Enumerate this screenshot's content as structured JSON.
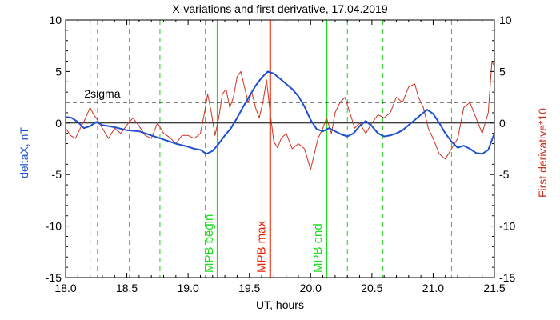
{
  "chart_data": {
    "type": "line",
    "title": "X-variations and first derivative, 17.04.2019",
    "xlabel": "UT, hours",
    "ylabel_left": "deltaX, nT",
    "ylabel_right": "First derivative*10",
    "xlim": [
      18.0,
      21.5
    ],
    "ylim": [
      -15,
      10
    ],
    "x_ticks": [
      {
        "value": 18.0,
        "label": "18.0"
      },
      {
        "value": 18.5,
        "label": "18.5"
      },
      {
        "value": 19.0,
        "label": "19.0"
      },
      {
        "value": 19.5,
        "label": "19.5"
      },
      {
        "value": 20.0,
        "label": "20.0"
      },
      {
        "value": 20.5,
        "label": "20.5"
      },
      {
        "value": 21.0,
        "label": "21.0"
      },
      {
        "value": 21.5,
        "label": "21.5"
      }
    ],
    "y_ticks": [
      {
        "value": 10,
        "label": "10"
      },
      {
        "value": 5,
        "label": "5"
      },
      {
        "value": 0,
        "label": "0"
      },
      {
        "value": -5,
        "label": "-5"
      },
      {
        "value": -10,
        "label": "-10"
      },
      {
        "value": -15,
        "label": "-15"
      }
    ],
    "colors": {
      "deltaX": "#1f50d0",
      "derivative": "#cc3322",
      "mpb_boundary": "#22dd22",
      "mpb_max": "#ee2200",
      "minima_lines": "#22cc22",
      "reference": "#000000"
    },
    "reference_lines": [
      {
        "y": 2,
        "style": "dashed",
        "label": "2sigma"
      },
      {
        "y": 0,
        "style": "solid",
        "label": ""
      }
    ],
    "dashed_markers_x": [
      18.2,
      18.26,
      18.52,
      18.77,
      19.14,
      20.3,
      20.59,
      21.15
    ],
    "event_lines": [
      {
        "x": 19.24,
        "label": "MPB begin",
        "color": "#22dd22"
      },
      {
        "x": 19.67,
        "label": "MPB max",
        "color": "#ee2200"
      },
      {
        "x": 20.13,
        "label": "MPB end",
        "color": "#22dd22"
      }
    ],
    "series": [
      {
        "name": "deltaX",
        "color": "#1f50d0",
        "x": [
          18.0,
          18.05,
          18.1,
          18.15,
          18.2,
          18.25,
          18.3,
          18.4,
          18.5,
          18.6,
          18.7,
          18.8,
          18.9,
          19.0,
          19.05,
          19.1,
          19.15,
          19.2,
          19.25,
          19.3,
          19.35,
          19.4,
          19.45,
          19.5,
          19.55,
          19.6,
          19.65,
          19.7,
          19.75,
          19.8,
          19.85,
          19.9,
          19.95,
          20.0,
          20.05,
          20.1,
          20.15,
          20.2,
          20.25,
          20.3,
          20.35,
          20.4,
          20.45,
          20.5,
          20.55,
          20.6,
          20.65,
          20.7,
          20.75,
          20.8,
          20.85,
          20.9,
          20.95,
          21.0,
          21.05,
          21.1,
          21.15,
          21.2,
          21.25,
          21.3,
          21.35,
          21.4,
          21.45,
          21.5
        ],
        "y": [
          0.6,
          0.5,
          0.1,
          -0.5,
          -0.3,
          0.1,
          -0.2,
          -0.4,
          -0.7,
          -0.8,
          -1.2,
          -1.6,
          -2.0,
          -2.3,
          -2.5,
          -2.6,
          -3.0,
          -2.7,
          -2.0,
          -1.2,
          -0.5,
          0.5,
          1.6,
          2.6,
          3.6,
          4.4,
          5.0,
          4.8,
          4.3,
          3.8,
          3.3,
          2.6,
          1.6,
          0.3,
          -0.6,
          -0.8,
          -0.5,
          -0.8,
          -1.1,
          -1.3,
          -1.0,
          -0.3,
          0.2,
          -0.3,
          -1.0,
          -1.3,
          -1.2,
          -1.0,
          -0.7,
          -0.2,
          0.3,
          0.8,
          1.3,
          0.9,
          0.0,
          -1.0,
          -1.8,
          -2.4,
          -2.2,
          -2.5,
          -2.9,
          -3.0,
          -2.6,
          -1.0
        ]
      },
      {
        "name": "First derivative*10",
        "color": "#cc3322",
        "x": [
          18.0,
          18.04,
          18.08,
          18.12,
          18.16,
          18.2,
          18.23,
          18.26,
          18.3,
          18.35,
          18.4,
          18.45,
          18.5,
          18.55,
          18.6,
          18.65,
          18.7,
          18.75,
          18.8,
          18.85,
          18.9,
          18.95,
          19.0,
          19.05,
          19.1,
          19.13,
          19.16,
          19.19,
          19.22,
          19.25,
          19.28,
          19.31,
          19.34,
          19.37,
          19.4,
          19.43,
          19.46,
          19.49,
          19.52,
          19.55,
          19.58,
          19.61,
          19.64,
          19.67,
          19.7,
          19.73,
          19.76,
          19.8,
          19.85,
          19.9,
          19.95,
          20.0,
          20.03,
          20.06,
          20.1,
          20.13,
          20.17,
          20.2,
          20.24,
          20.28,
          20.32,
          20.36,
          20.4,
          20.45,
          20.5,
          20.55,
          20.6,
          20.65,
          20.7,
          20.75,
          20.8,
          20.85,
          20.88,
          20.92,
          20.96,
          21.0,
          21.05,
          21.1,
          21.15,
          21.2,
          21.25,
          21.3,
          21.35,
          21.4,
          21.45,
          21.48,
          21.5
        ],
        "y": [
          -0.5,
          -1.2,
          -1.5,
          -0.5,
          0.4,
          1.5,
          0.8,
          0.3,
          -0.5,
          -1.5,
          -0.5,
          -1.0,
          -0.2,
          0.5,
          -0.3,
          -1.2,
          -1.5,
          0.0,
          -1.0,
          -1.4,
          -2.0,
          -1.2,
          -1.2,
          -1.5,
          -1.0,
          0.8,
          2.8,
          1.0,
          -1.2,
          0.5,
          2.8,
          3.3,
          1.5,
          2.5,
          4.5,
          5.0,
          3.5,
          2.0,
          3.0,
          1.5,
          0.5,
          2.0,
          4.2,
          1.0,
          -1.8,
          -2.4,
          -1.5,
          -1.0,
          -2.5,
          -2.0,
          -2.5,
          -4.5,
          -3.0,
          -1.5,
          -0.5,
          0.5,
          -1.0,
          1.0,
          2.0,
          2.5,
          1.0,
          -0.5,
          0.0,
          -1.0,
          0.0,
          0.8,
          0.5,
          1.0,
          2.5,
          2.0,
          3.5,
          3.8,
          2.5,
          1.5,
          -0.5,
          -1.5,
          -3.0,
          -3.5,
          -2.5,
          -1.5,
          1.5,
          2.0,
          0.5,
          -1.0,
          1.0,
          6.0,
          5.5
        ]
      }
    ]
  }
}
